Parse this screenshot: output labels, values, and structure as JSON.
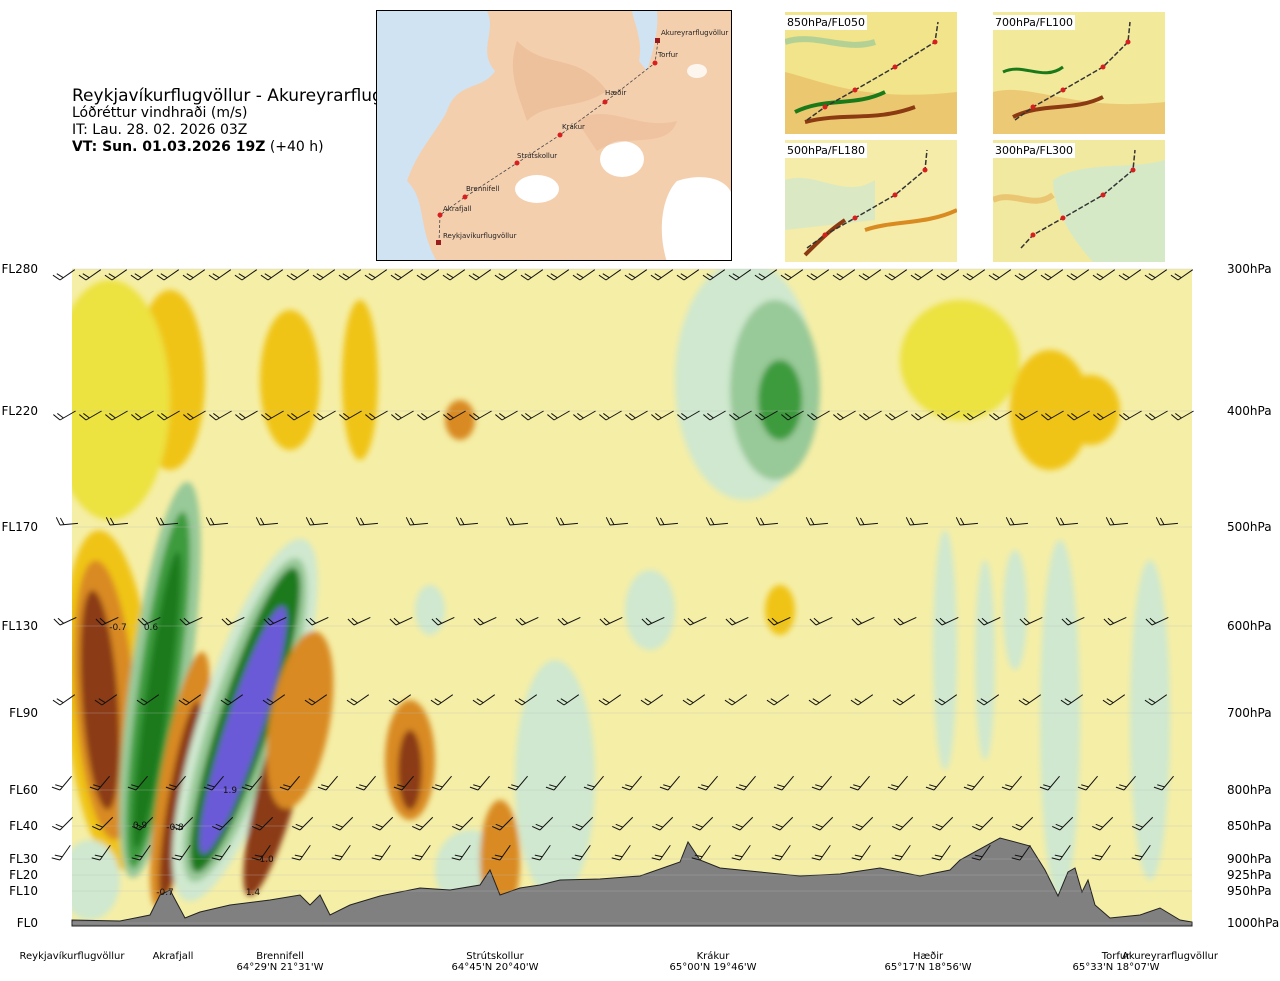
{
  "header": {
    "route_title": "Reykjavíkurflugvöllur - Akureyrarflugvöllur",
    "variable": "Lóðréttur vindhraði (m/s)",
    "init_time": "IT: Lau. 28. 02. 2026 03Z",
    "valid_time": "VT: Sun. 01.03.2026 19Z",
    "lead": " (+40 h)"
  },
  "map": {
    "points": [
      "Akureyrarflugvöllur",
      "Torfur",
      "Hæðir",
      "Krákur",
      "Strútskollur",
      "Brennifell",
      "Akrafjall",
      "Reykjavíkurflugvöllur"
    ]
  },
  "minimaps": [
    {
      "label": "850hPa/FL050"
    },
    {
      "label": "700hPa/FL100"
    },
    {
      "label": "500hPa/FL180"
    },
    {
      "label": "300hPa/FL300"
    }
  ],
  "colors": {
    "strong_down": "#8b3a12",
    "mid_down": "#d98a21",
    "weak_down": "#f0c419",
    "faint_down": "#ece240",
    "neutral": "#f5eea6",
    "faint_up": "#cfe8cf",
    "weak_up": "#98c998",
    "mid_up": "#3e9b3e",
    "strong_up": "#1a7a1a",
    "very_strong_up": "#6a5ad8",
    "terrain": "#808080"
  },
  "chart_data": {
    "type": "heatmap",
    "variable": "Lóðréttur vindhraði (m/s)",
    "left_levels": [
      "FL280",
      "FL220",
      "FL170",
      "FL130",
      "FL90",
      "FL60",
      "FL40",
      "FL30",
      "FL20",
      "FL10",
      "FL0"
    ],
    "right_levels": [
      "300hPa",
      "400hPa",
      "500hPa",
      "600hPa",
      "700hPa",
      "800hPa",
      "850hPa",
      "900hPa",
      "925hPa",
      "950hPa",
      "1000hPa"
    ],
    "locations": [
      {
        "name": "Reykjavíkurflugvöllur",
        "coord": ""
      },
      {
        "name": "Akrafjall",
        "coord": ""
      },
      {
        "name": "Brennifell",
        "coord": "64°29'N 21°31'W"
      },
      {
        "name": "Strútskollur",
        "coord": "64°45'N 20°40'W"
      },
      {
        "name": "Krákur",
        "coord": "65°00'N 19°46'W"
      },
      {
        "name": "Hæðir",
        "coord": "65°17'N 18°56'W"
      },
      {
        "name": "Torfur",
        "coord": "65°33'N 18°07'W"
      },
      {
        "name": "Akureyrarflugvöllur",
        "coord": ""
      }
    ],
    "annotations": [
      {
        "text": "-0.7",
        "level": "FL130",
        "near": "Reykjavíkurflugvöllur"
      },
      {
        "text": "0.6",
        "level": "FL130",
        "near": "Akrafjall"
      },
      {
        "text": "1.9",
        "level": "FL60",
        "near": "Brennifell"
      },
      {
        "text": "0.9",
        "level": "FL40",
        "near": "Akrafjall"
      },
      {
        "text": "-0.8",
        "level": "FL40",
        "near": "Akrafjall"
      },
      {
        "text": "-1.0",
        "level": "FL30",
        "near": "Brennifell"
      },
      {
        "text": "-0.7",
        "level": "FL10",
        "near": "Akrafjall"
      },
      {
        "text": "1.4",
        "level": "FL10",
        "near": "Brennifell"
      }
    ]
  }
}
